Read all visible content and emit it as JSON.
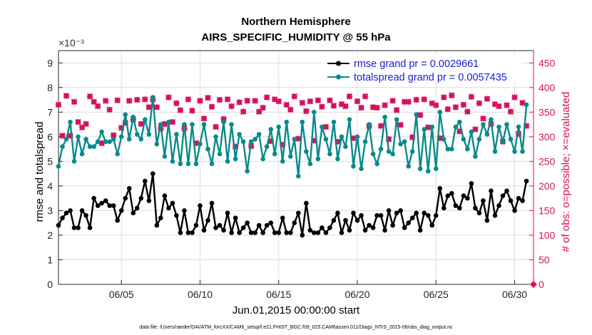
{
  "chart_data": {
    "type": "line",
    "title": "Northern Hemisphere",
    "subtitle": "AIRS_SPECIFIC_HUMIDITY @ 55 hPa",
    "xlabel": "Jun.01,2015 00:00:00 start",
    "ylabel": "rmse and totalspread",
    "y2label": "# of obs: o=possible; ×=evaluated",
    "y_exponent": "×10⁻³",
    "footer": "data file: /Users/raeder/DAI/ATM_forcXX/CAM6_setup/f.e21.FHIST_BGC.f09_025.CAM6assim.011/Diags_NTrS_2015-06/obs_diag_output.nc",
    "xlim": [
      1,
      31.2
    ],
    "ylim": [
      0,
      9.5
    ],
    "y2lim": [
      0,
      475
    ],
    "xticks": [
      5,
      10,
      15,
      20,
      25,
      30
    ],
    "xtick_labels": [
      "06/05",
      "06/10",
      "06/15",
      "06/20",
      "06/25",
      "06/30"
    ],
    "yticks": [
      0,
      1,
      2,
      3,
      4,
      5,
      6,
      7,
      8,
      9
    ],
    "yticks_labels": [
      "0",
      "1",
      "2",
      "3",
      "4",
      "5",
      "6",
      "7",
      "8",
      "9"
    ],
    "y2ticks": [
      0,
      50,
      100,
      150,
      200,
      250,
      300,
      350,
      400,
      450
    ],
    "y2ticks_labels": [
      "0",
      "50",
      "100",
      "150",
      "200",
      "250",
      "300",
      "350",
      "400",
      "450"
    ],
    "grid": true,
    "legend_position": "top-right",
    "x": [
      1.0,
      1.25,
      1.5,
      1.75,
      2.0,
      2.25,
      2.5,
      2.75,
      3.0,
      3.25,
      3.5,
      3.75,
      4.0,
      4.25,
      4.5,
      4.75,
      5.0,
      5.25,
      5.5,
      5.75,
      6.0,
      6.25,
      6.5,
      6.75,
      7.0,
      7.25,
      7.5,
      7.75,
      8.0,
      8.25,
      8.5,
      8.75,
      9.0,
      9.25,
      9.5,
      9.75,
      10.0,
      10.25,
      10.5,
      10.75,
      11.0,
      11.25,
      11.5,
      11.75,
      12.0,
      12.25,
      12.5,
      12.75,
      13.0,
      13.25,
      13.5,
      13.75,
      14.0,
      14.25,
      14.5,
      14.75,
      15.0,
      15.25,
      15.5,
      15.75,
      16.0,
      16.25,
      16.5,
      16.75,
      17.0,
      17.25,
      17.5,
      17.75,
      18.0,
      18.25,
      18.5,
      18.75,
      19.0,
      19.25,
      19.5,
      19.75,
      20.0,
      20.25,
      20.5,
      20.75,
      21.0,
      21.25,
      21.5,
      21.75,
      22.0,
      22.25,
      22.5,
      22.75,
      23.0,
      23.25,
      23.5,
      23.75,
      24.0,
      24.25,
      24.5,
      24.75,
      25.0,
      25.25,
      25.5,
      25.75,
      26.0,
      26.25,
      26.5,
      26.75,
      27.0,
      27.25,
      27.5,
      27.75,
      28.0,
      28.25,
      28.5,
      28.75,
      29.0,
      29.25,
      29.5,
      29.75,
      30.0,
      30.25,
      30.5,
      30.75
    ],
    "series": [
      {
        "name": "rmse",
        "legend_label": "rmse grand pr = 0.0029661",
        "color": "#000000",
        "marker": "o",
        "axis": "left",
        "values": [
          2.4,
          2.7,
          2.9,
          3.0,
          2.3,
          2.3,
          3.0,
          2.8,
          2.3,
          3.5,
          3.2,
          3.3,
          3.4,
          3.2,
          3.2,
          2.6,
          3.0,
          3.5,
          3.9,
          2.9,
          3.1,
          3.5,
          4.2,
          3.4,
          4.5,
          2.4,
          2.7,
          3.6,
          3.1,
          3.3,
          2.8,
          2.1,
          3.0,
          2.1,
          2.1,
          2.4,
          3.2,
          2.2,
          2.6,
          3.3,
          2.3,
          2.4,
          2.2,
          2.9,
          2.1,
          2.7,
          2.1,
          2.3,
          2.5,
          2.1,
          2.1,
          2.4,
          2.1,
          2.4,
          2.5,
          2.1,
          2.1,
          2.7,
          2.1,
          2.1,
          2.5,
          2.9,
          2.0,
          3.3,
          2.2,
          2.1,
          2.1,
          2.3,
          2.1,
          2.3,
          2.6,
          2.9,
          2.1,
          2.6,
          2.2,
          2.9,
          2.6,
          2.8,
          2.2,
          2.4,
          2.3,
          2.8,
          2.8,
          2.2,
          3.0,
          2.4,
          2.9,
          3.0,
          2.3,
          2.5,
          2.7,
          2.9,
          2.2,
          2.9,
          2.8,
          2.4,
          2.8,
          3.9,
          3.1,
          3.6,
          3.7,
          3.2,
          3.1,
          3.6,
          3.5,
          4.1,
          3.1,
          2.9,
          3.4,
          2.6,
          3.8,
          2.8,
          3.2,
          3.6,
          3.8,
          3.4,
          3.0,
          3.5,
          3.4,
          4.2
        ]
      },
      {
        "name": "totalspread",
        "legend_label": "totalspread grand pr = 0.0057435",
        "color": "#0a8a8a",
        "marker": "o",
        "axis": "left",
        "values": [
          4.8,
          5.6,
          5.9,
          6.6,
          5.0,
          6.0,
          5.3,
          5.9,
          5.6,
          5.6,
          5.8,
          6.2,
          5.8,
          5.8,
          5.9,
          5.3,
          6.0,
          6.9,
          5.9,
          6.8,
          6.1,
          5.9,
          6.7,
          6.1,
          7.6,
          5.7,
          6.5,
          5.2,
          6.6,
          5.0,
          6.1,
          4.9,
          6.5,
          4.9,
          6.5,
          4.9,
          5.7,
          6.5,
          5.5,
          4.9,
          6.0,
          5.3,
          6.6,
          5.0,
          6.5,
          5.1,
          6.1,
          5.8,
          4.6,
          5.8,
          5.9,
          6.1,
          5.1,
          5.6,
          6.3,
          5.3,
          6.4,
          5.0,
          6.6,
          5.2,
          5.9,
          4.4,
          6.6,
          5.4,
          4.9,
          7.0,
          5.1,
          6.4,
          5.9,
          5.3,
          6.6,
          5.1,
          6.0,
          5.6,
          6.7,
          4.8,
          6.0,
          4.7,
          5.8,
          6.5,
          5.3,
          4.9,
          5.5,
          6.8,
          5.4,
          5.3,
          6.7,
          5.7,
          5.8,
          4.8,
          5.4,
          6.9,
          4.7,
          6.3,
          4.6,
          6.4,
          4.7,
          7.0,
          5.9,
          5.5,
          5.5,
          6.4,
          6.6,
          5.9,
          5.5,
          6.2,
          5.2,
          5.9,
          6.5,
          6.1,
          6.7,
          5.4,
          6.4,
          5.8,
          6.5,
          5.9,
          5.4,
          6.4,
          5.4,
          7.3
        ]
      },
      {
        "name": "obs_possible",
        "color": "#d6105e",
        "marker": "o",
        "axis": "right",
        "values": [
          365,
          302,
          383,
          302,
          371,
          330,
          319,
          326,
          382,
          371,
          362,
          287,
          373,
          355,
          303,
          374,
          318,
          328,
          373,
          335,
          375,
          326,
          376,
          360,
          376,
          360,
          317,
          326,
          380,
          330,
          368,
          354,
          317,
          376,
          353,
          287,
          373,
          337,
          379,
          361,
          320,
          375,
          336,
          376,
          362,
          280,
          370,
          351,
          373,
          281,
          373,
          351,
          359,
          380,
          291,
          376,
          372,
          284,
          365,
          355,
          382,
          296,
          369,
          352,
          372,
          292,
          374,
          361,
          320,
          374,
          363,
          290,
          366,
          362,
          382,
          297,
          372,
          359,
          382,
          322,
          360,
          359,
          322,
          364,
          295,
          373,
          354,
          324,
          371,
          371,
          299,
          375,
          344,
          376,
          319,
          368,
          364,
          297,
          380,
          356,
          384,
          360,
          311,
          365,
          351,
          381,
          315,
          368,
          337,
          377,
          326,
          366,
          362,
          290,
          364,
          351,
          380,
          306,
          369,
          322
        ]
      },
      {
        "name": "obs_evaluated",
        "color": "#d6105e",
        "marker": "x",
        "axis": "right",
        "values": [
          365,
          302,
          383,
          302,
          371,
          330,
          319,
          326,
          382,
          371,
          362,
          287,
          373,
          355,
          303,
          374,
          318,
          328,
          373,
          335,
          375,
          326,
          376,
          360,
          376,
          360,
          317,
          326,
          380,
          330,
          368,
          354,
          317,
          376,
          353,
          287,
          373,
          337,
          379,
          361,
          320,
          375,
          336,
          376,
          362,
          280,
          370,
          351,
          373,
          281,
          373,
          351,
          359,
          380,
          291,
          376,
          372,
          284,
          365,
          355,
          382,
          296,
          369,
          352,
          372,
          292,
          374,
          361,
          320,
          374,
          363,
          290,
          366,
          362,
          382,
          297,
          372,
          359,
          382,
          322,
          360,
          359,
          322,
          364,
          295,
          373,
          354,
          324,
          371,
          371,
          299,
          375,
          344,
          376,
          319,
          368,
          364,
          297,
          380,
          356,
          384,
          360,
          311,
          365,
          351,
          381,
          315,
          368,
          337,
          377,
          326,
          366,
          362,
          290,
          364,
          351,
          380,
          306,
          369,
          322
        ]
      }
    ]
  }
}
